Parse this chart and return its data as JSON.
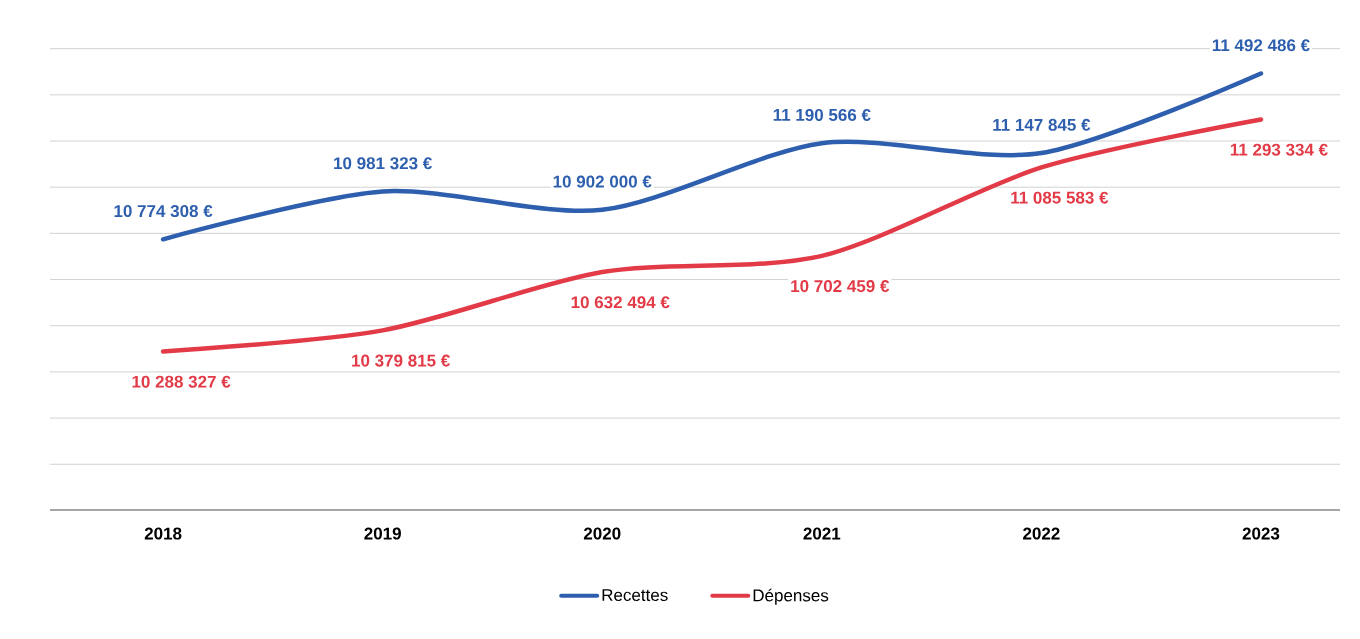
{
  "chart_data": {
    "type": "line",
    "categories": [
      "2018",
      "2019",
      "2020",
      "2021",
      "2022",
      "2023"
    ],
    "series": [
      {
        "name": "Recettes",
        "color": "#2e5fae",
        "values": [
          10774308,
          10981323,
          10902000,
          11190566,
          11147845,
          11492486
        ],
        "value_labels": [
          "10 774 308 €",
          "10 981 323 €",
          "10 902 000 €",
          "11 190 566 €",
          "11 147 845 €",
          "11 492 486 €"
        ]
      },
      {
        "name": "Dépenses",
        "color": "#e23b47",
        "values": [
          10288327,
          10379815,
          10632494,
          10702459,
          11085583,
          11293334
        ],
        "value_labels": [
          "10 288 327 €",
          "10 379 815 €",
          "10 632 494 €",
          "10 702 459 €",
          "11 085 583 €",
          "11 293 334 €"
        ]
      }
    ],
    "tick_labels": "x",
    "grid": "y",
    "legend": "bottom",
    "marker": "none",
    "line_style": "solid"
  }
}
